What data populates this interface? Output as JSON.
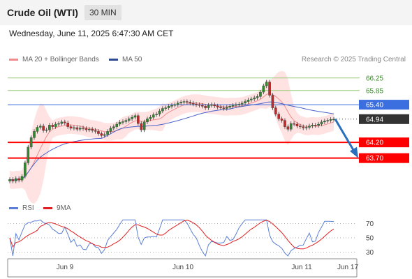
{
  "header": {
    "title": "Crude Oil (WTI)",
    "interval": "30 MIN",
    "datetime": "Wednesday, June 11, 2025 6:47:30 AM CET"
  },
  "legend": {
    "bb_label": "MA 20 + Bollinger Bands",
    "ma50_label": "MA 50",
    "credit": "Research © 2025 Trading Central"
  },
  "rsi_legend": {
    "rsi_label": "RSI",
    "ma_label": "9MA"
  },
  "colors": {
    "bb_fill": "#ffd9d9",
    "ma20": "#f08c8c",
    "ma50": "#4b63c9",
    "candle": "#3a3a3a",
    "up": "#2e8b2e",
    "down": "#c62828",
    "support": "#ff0000",
    "resistance_green": "#99cc77",
    "resistance_blue": "#3b6fe0",
    "current": "#333333",
    "arrow": "#2a6ebd",
    "rsi": "#5b7fd6",
    "rsi_ma": "#e02020"
  },
  "chart_data": {
    "type": "candlestick",
    "x_labels": [
      "Jun 9",
      "Jun 10",
      "Jun 11",
      "Jun 17"
    ],
    "price_axis": {
      "ylim": [
        62.45,
        66.6
      ]
    },
    "levels": [
      {
        "value": 66.25,
        "label": "66.25",
        "kind": "resistance_green"
      },
      {
        "value": 65.85,
        "label": "65.85",
        "kind": "resistance_green"
      },
      {
        "value": 65.4,
        "label": "65.40",
        "kind": "resistance_blue"
      },
      {
        "value": 64.94,
        "label": "64.94",
        "kind": "current"
      },
      {
        "value": 64.2,
        "label": "64.20",
        "kind": "support"
      },
      {
        "value": 63.7,
        "label": "63.70",
        "kind": "support"
      }
    ],
    "close": [
      63.02,
      62.97,
      63.05,
      63.0,
      63.12,
      63.55,
      64.05,
      64.35,
      64.55,
      64.68,
      64.72,
      64.58,
      64.6,
      64.75,
      64.7,
      64.78,
      64.8,
      64.85,
      64.82,
      64.7,
      64.65,
      64.67,
      64.62,
      64.66,
      64.64,
      64.6,
      64.62,
      64.58,
      64.55,
      64.48,
      64.42,
      64.45,
      64.55,
      64.65,
      64.7,
      64.78,
      64.84,
      64.86,
      64.9,
      64.95,
      65.0,
      65.05,
      64.8,
      64.6,
      64.85,
      64.95,
      65.0,
      65.08,
      65.1,
      65.2,
      65.28,
      65.3,
      65.35,
      65.38,
      65.4,
      65.45,
      65.48,
      65.5,
      65.48,
      65.45,
      65.42,
      65.4,
      65.38,
      65.35,
      65.3,
      65.38,
      65.4,
      65.36,
      65.32,
      65.3,
      65.28,
      65.32,
      65.35,
      65.38,
      65.4,
      65.42,
      65.45,
      65.5,
      65.55,
      65.58,
      65.62,
      65.66,
      65.8,
      66.0,
      66.12,
      65.7,
      65.3,
      65.1,
      64.95,
      64.9,
      64.7,
      64.62,
      64.8,
      64.78,
      64.72,
      64.7,
      64.66,
      64.68,
      64.72,
      64.75,
      64.74,
      64.78,
      64.85,
      64.88,
      64.9,
      64.93,
      64.94
    ],
    "forecast_path": [
      64.94,
      63.7
    ],
    "rsi": {
      "levels": [
        70,
        50,
        30
      ],
      "ylim": [
        22,
        80
      ]
    }
  }
}
